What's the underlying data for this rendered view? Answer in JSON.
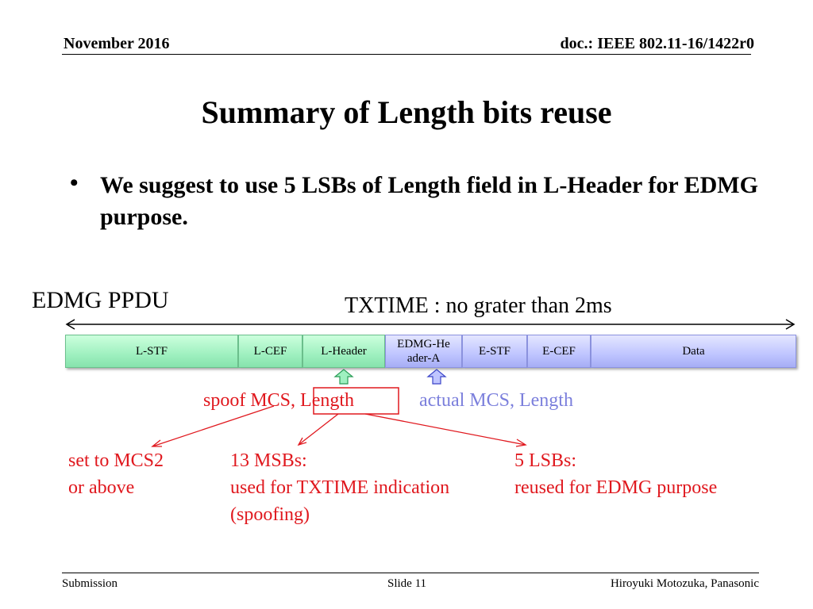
{
  "header": {
    "date": "November 2016",
    "doc": "doc.: IEEE 802.11-16/1422r0"
  },
  "title": "Summary of Length bits reuse",
  "bullet": {
    "marker": "•",
    "text": "We suggest to use 5 LSBs of Length field in L-Header for EDMG purpose."
  },
  "diagram": {
    "ppdu_label": "EDMG PPDU",
    "txtime_label": "TXTIME : no grater than 2ms",
    "fields": [
      {
        "label": "L-STF",
        "color": "green"
      },
      {
        "label": "L-CEF",
        "color": "green"
      },
      {
        "label": "L-Header",
        "color": "green"
      },
      {
        "label": "EDMG-Header-A",
        "color": "blue"
      },
      {
        "label": "E-STF",
        "color": "blue"
      },
      {
        "label": "E-CEF",
        "color": "blue"
      },
      {
        "label": "Data",
        "color": "blue"
      }
    ],
    "spoof_label": "spoof MCS, Length",
    "actual_label": "actual MCS, Length",
    "notes": {
      "mcs": [
        "set to MCS2",
        "or above"
      ],
      "msbs": [
        "13 MSBs:",
        "used for TXTIME indication",
        "(spoofing)"
      ],
      "lsbs": [
        "5 LSBs:",
        "reused for EDMG purpose"
      ]
    },
    "colors": {
      "red": "#e0181e",
      "blue_text": "#7b7fdc",
      "green_field": "#a6f2c4",
      "blue_field": "#b8beff"
    }
  },
  "footer": {
    "left": "Submission",
    "center": "Slide 11",
    "right": "Hiroyuki Motozuka, Panasonic"
  }
}
